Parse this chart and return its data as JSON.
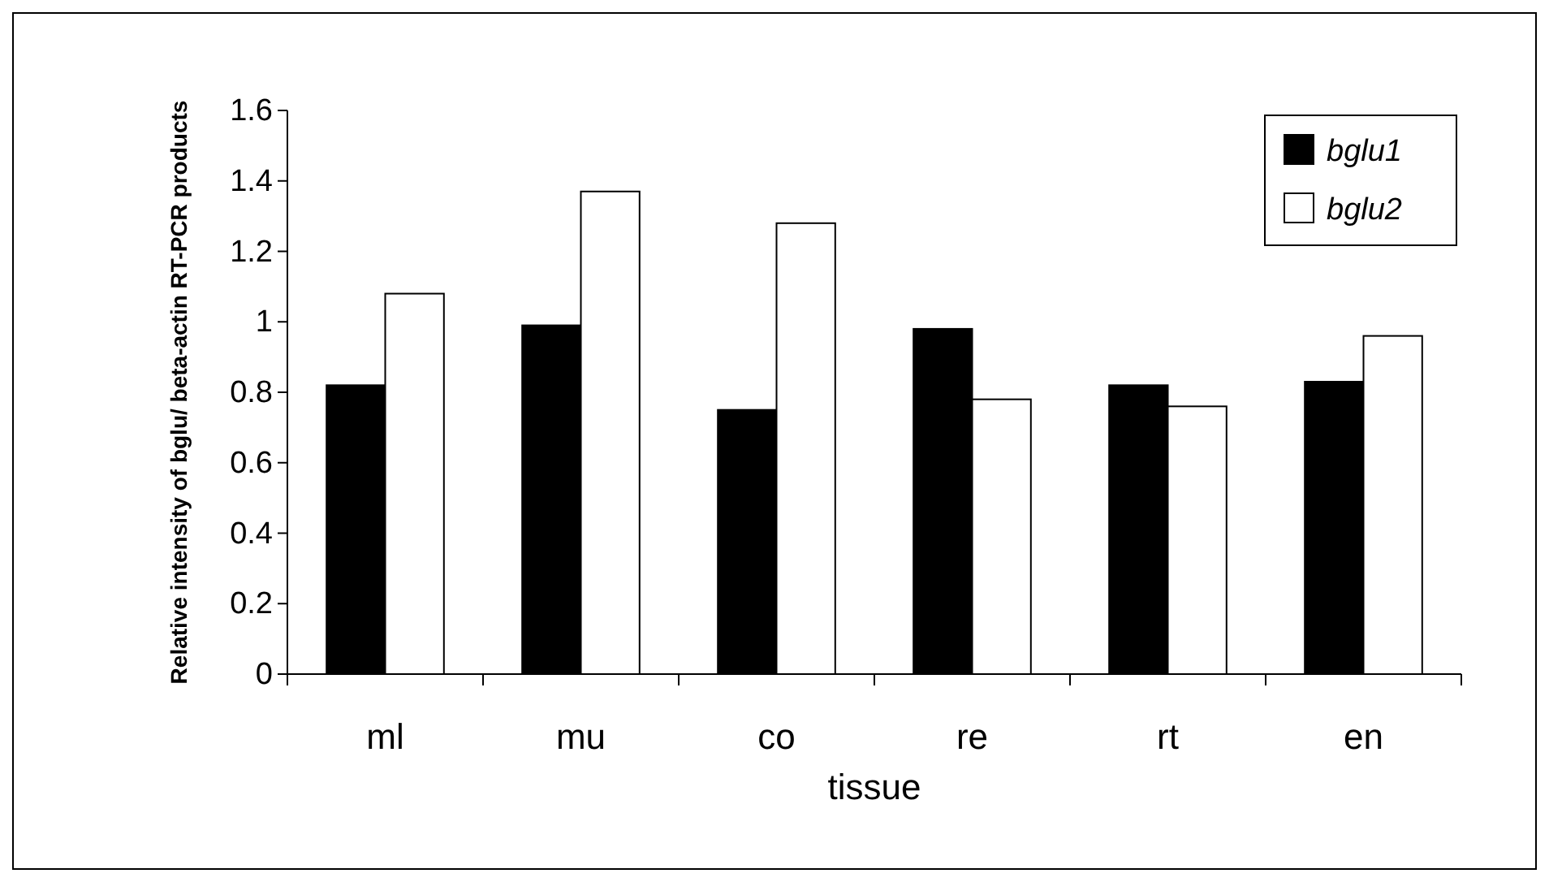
{
  "chart_data": {
    "type": "bar",
    "xlabel": "tissue",
    "ylabel": "Relative intensity of bglu/ beta-actin RT-PCR products",
    "categories": [
      "ml",
      "mu",
      "co",
      "re",
      "rt",
      "en"
    ],
    "series": [
      {
        "name": "bglu1",
        "color": "#000000",
        "values": [
          0.82,
          0.99,
          0.75,
          0.98,
          0.82,
          0.83
        ]
      },
      {
        "name": "bglu2",
        "color": "#ffffff",
        "values": [
          1.08,
          1.37,
          1.28,
          0.78,
          0.76,
          0.96
        ]
      }
    ],
    "ylim": [
      0,
      1.6
    ],
    "yticks": [
      0,
      {
        "value": 0.2,
        "label": "0.2"
      },
      {
        "value": 0.4,
        "label": "0.4"
      },
      {
        "value": 0.6,
        "label": "0.6"
      },
      {
        "value": 0.8,
        "label": "0.8"
      },
      1,
      {
        "value": 1.2,
        "label": "1.2"
      },
      {
        "value": 1.4,
        "label": "1.4"
      },
      {
        "value": 1.6,
        "label": "1.6"
      }
    ],
    "grid": false,
    "legend": "top right"
  }
}
